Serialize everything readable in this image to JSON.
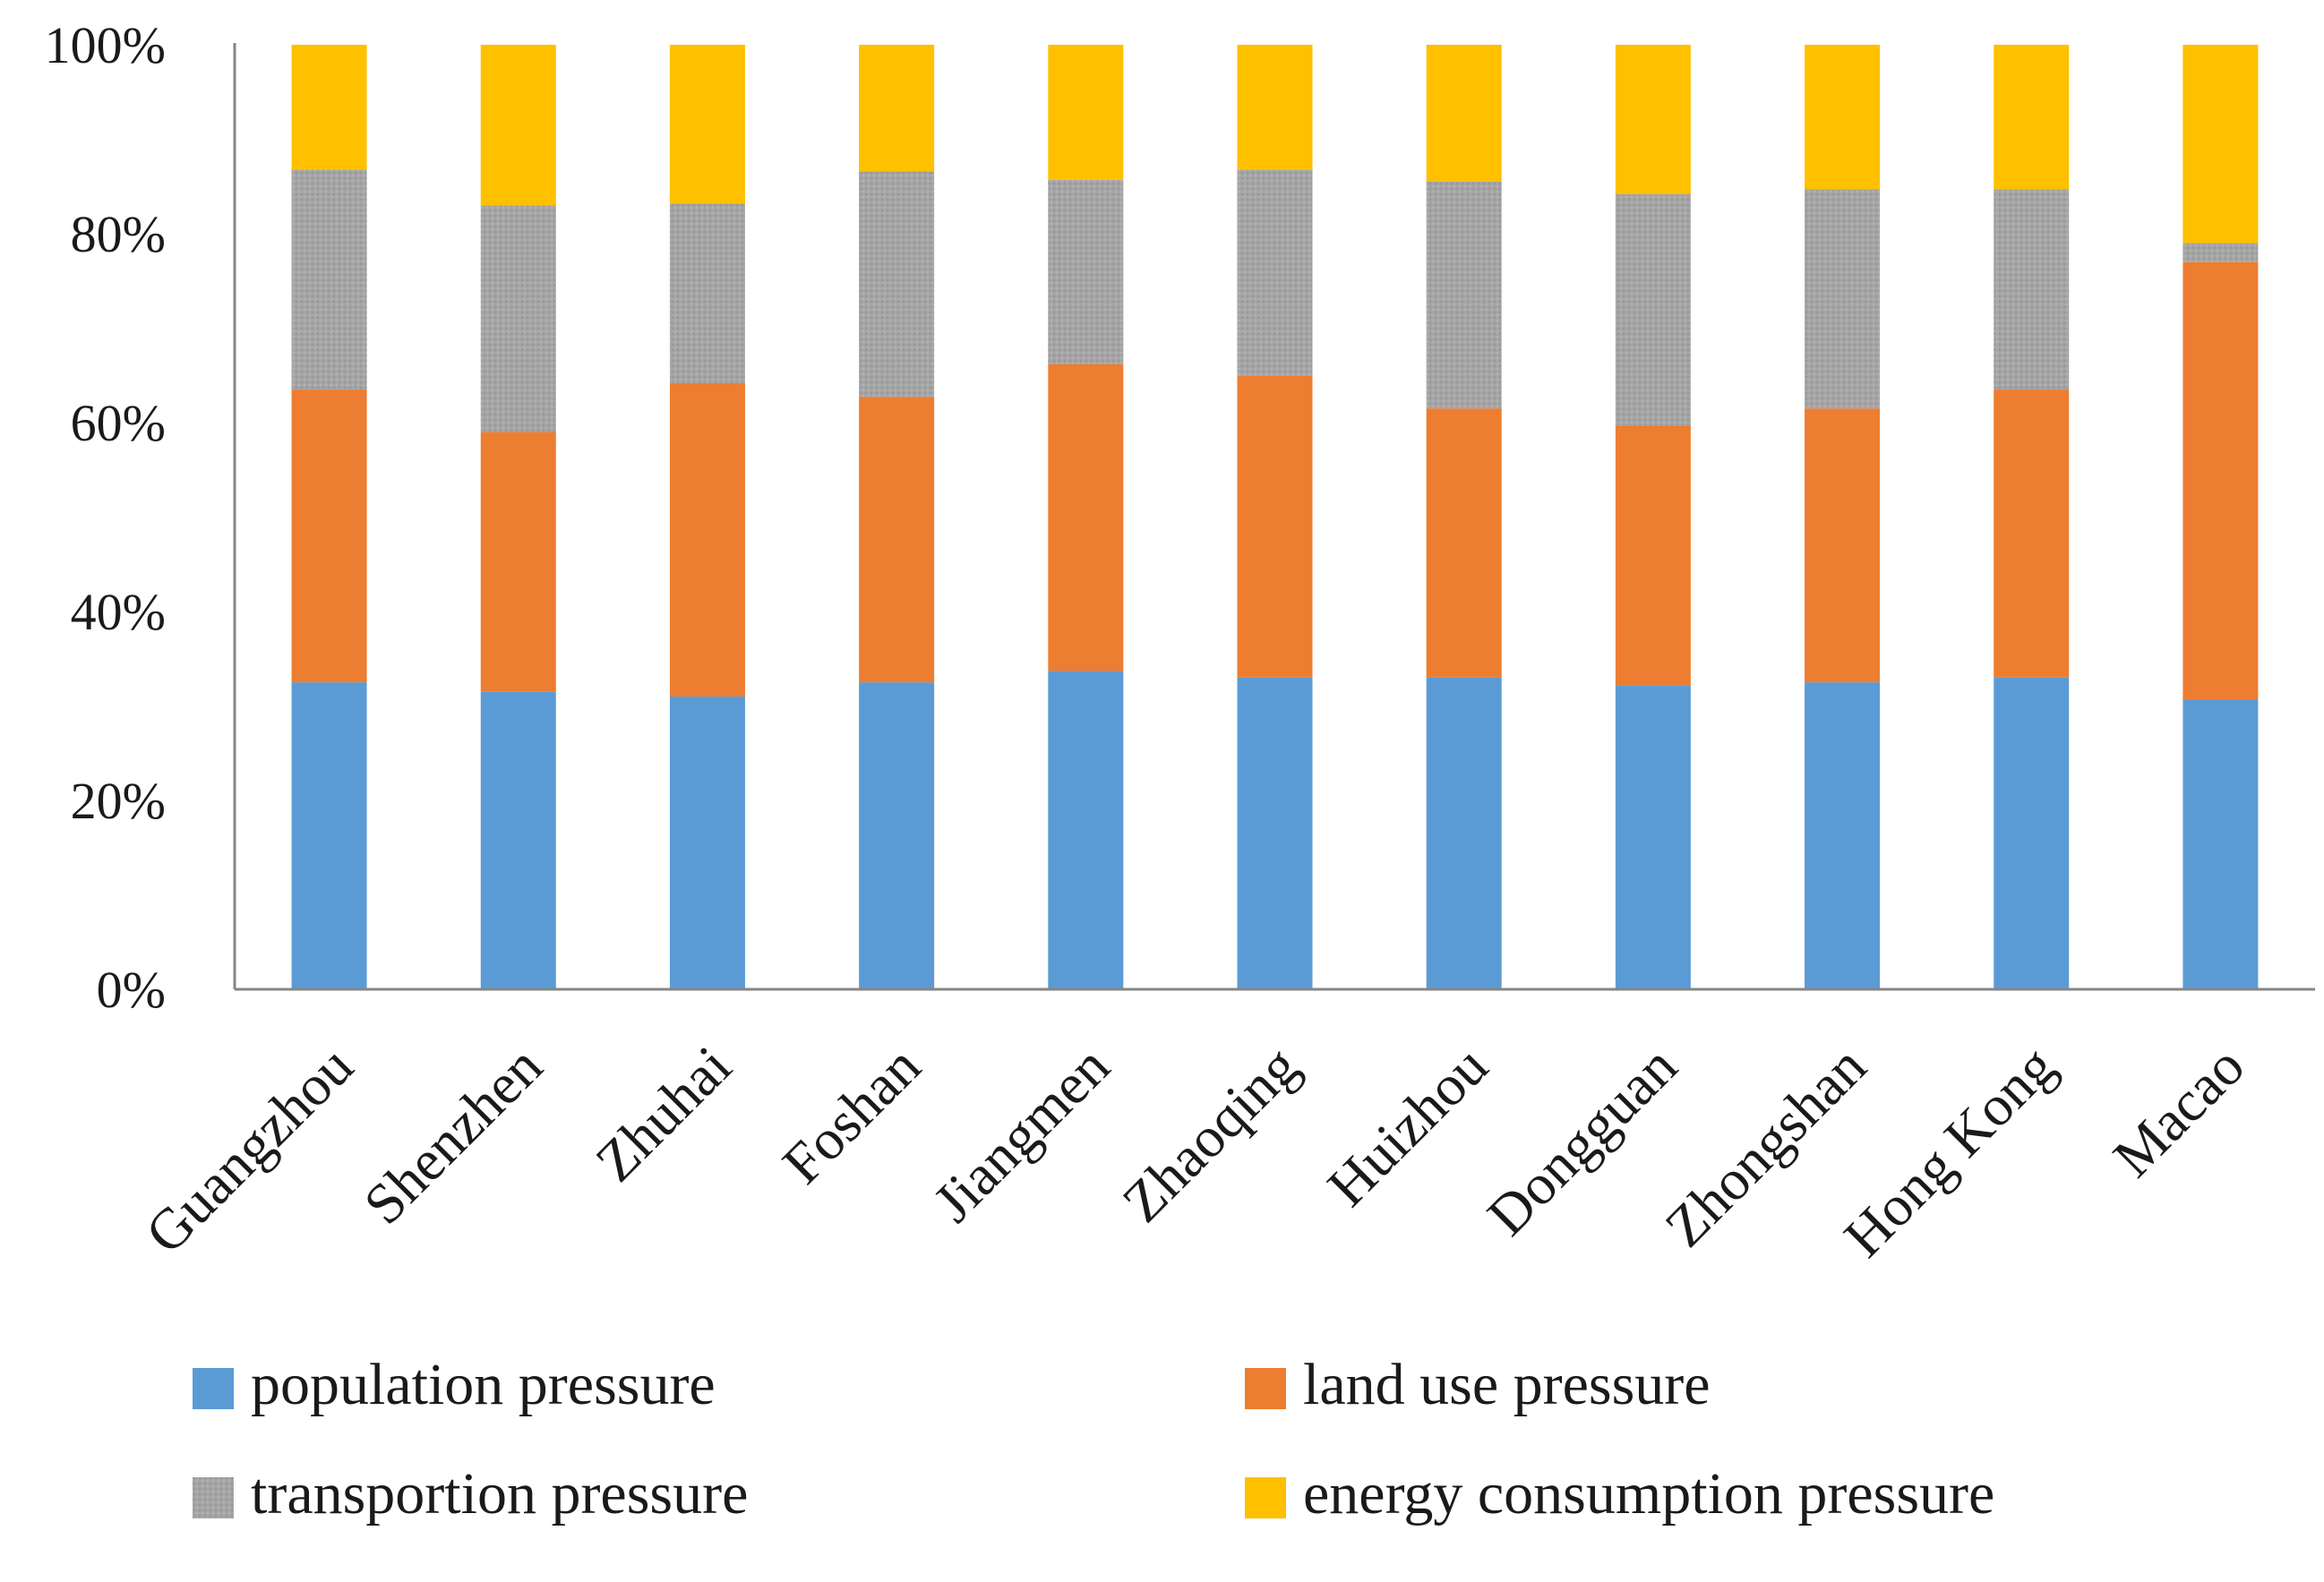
{
  "chart_data": {
    "type": "bar",
    "stacked": true,
    "percent": true,
    "title": "",
    "xlabel": "",
    "ylabel": "",
    "ylim": [
      0,
      100
    ],
    "y_ticks": [
      "0%",
      "20%",
      "40%",
      "60%",
      "80%",
      "100%"
    ],
    "grid": false,
    "legend_position": "bottom",
    "categories": [
      "Guangzhou",
      "Shenzhen",
      "Zhuhai",
      "Foshan",
      "Jiangmen",
      "Zhaoqing",
      "Huizhou",
      "Dongguan",
      "Zhongshan",
      "Hong Kong",
      "Macao"
    ],
    "series": [
      {
        "name": "population pressure",
        "color": "#5b9bd5",
        "values": [
          32.5,
          31.5,
          31.0,
          32.5,
          33.7,
          33.0,
          33.0,
          32.2,
          32.5,
          33.0,
          30.7
        ]
      },
      {
        "name": "land use pressure",
        "color": "#ed7d31",
        "values": [
          31.0,
          27.5,
          33.2,
          30.2,
          32.5,
          32.0,
          28.5,
          27.5,
          29.0,
          30.5,
          46.3
        ]
      },
      {
        "name": "transportion pressure",
        "color": "#a5a5a5",
        "values": [
          23.3,
          24.0,
          19.0,
          23.9,
          19.5,
          21.8,
          24.0,
          24.5,
          23.2,
          21.2,
          2.0
        ]
      },
      {
        "name": "energy consumption pressure",
        "color": "#ffc000",
        "values": [
          13.2,
          17.0,
          16.8,
          13.4,
          14.3,
          13.2,
          14.5,
          15.8,
          15.3,
          15.3,
          21.0
        ]
      }
    ]
  }
}
